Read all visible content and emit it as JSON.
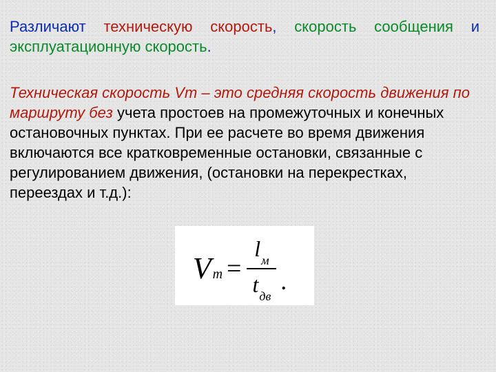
{
  "para1": {
    "a": "Различают ",
    "b": "техническую скорость",
    "c": ", ",
    "d": "скорость сообщения",
    "e": " и ",
    "f": "эксплуатационную скорость",
    "g": "."
  },
  "para2": {
    "a": "Техническая скорость Vт – это средняя скорость движения по маршруту без",
    "b": " учета простоев на промежуточных и конечных остановочных пунктах. При ее расчете во время движения включаются все кратковременные остановки, связанные с регулированием движения, (остановки на перекрестках, переездах и т.д.):"
  },
  "formula": {
    "V": "V",
    "V_sub": "т",
    "eq": "=",
    "num_main": "l",
    "num_sub": "м",
    "den_main": "t",
    "den_sub": "дв",
    "dot": "."
  },
  "colors": {
    "red": "#b01a0f",
    "blue": "#0b2db0",
    "green": "#0a8a2a",
    "text": "#000000",
    "bg": "#e6e6e6",
    "formula_bg": "#ffffff"
  }
}
